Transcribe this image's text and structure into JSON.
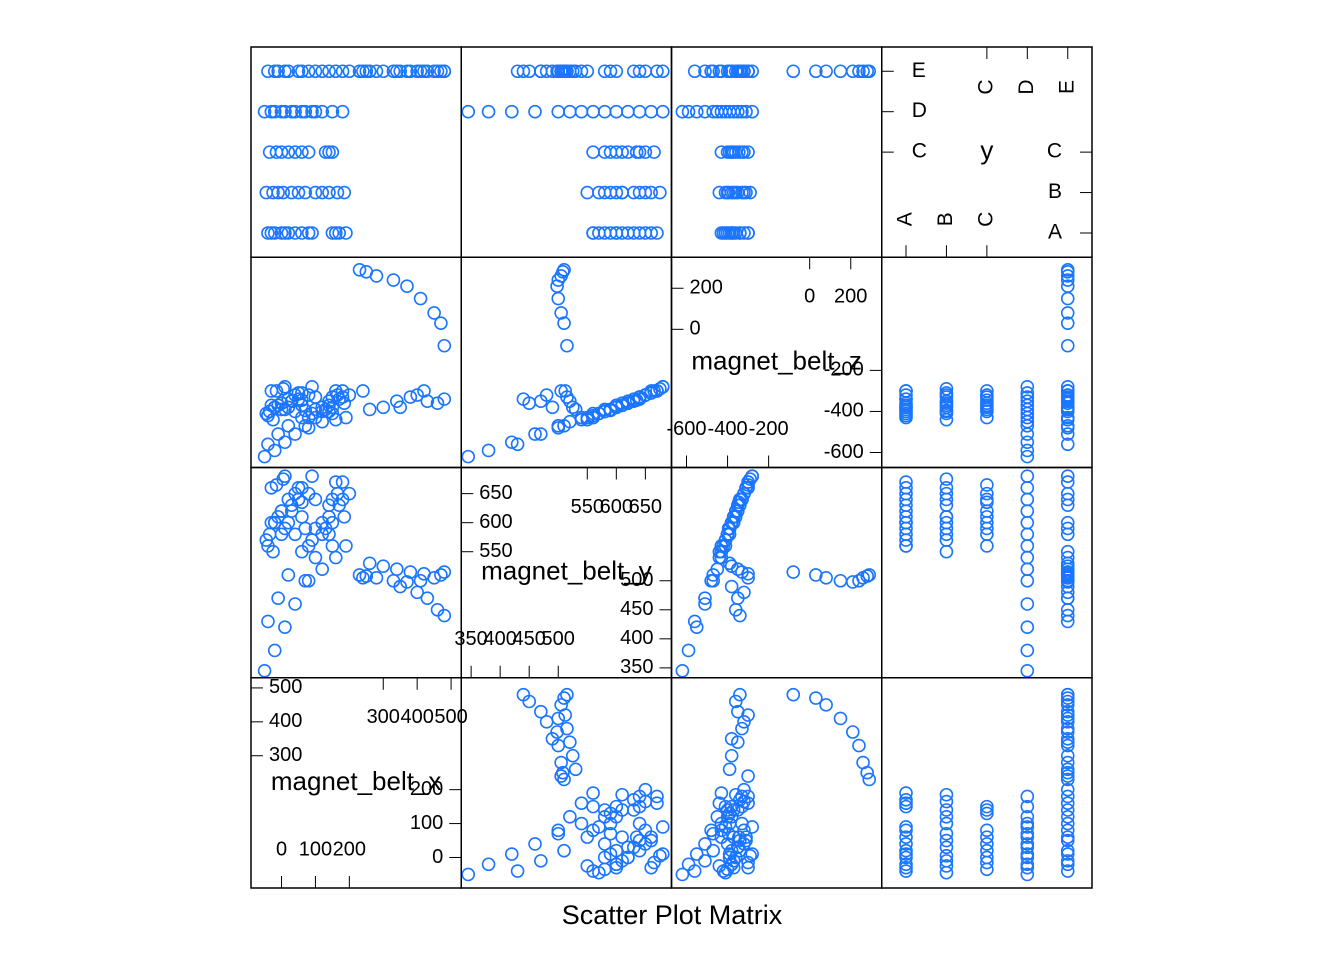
{
  "chart_data": {
    "type": "splom",
    "title": "Scatter Plot Matrix",
    "color": "#1a75ff",
    "variables": [
      {
        "name": "magnet_belt_x",
        "lim": [
          -90,
          530
        ],
        "ticks": [
          0,
          100,
          200,
          300,
          400,
          500
        ],
        "values": [
          -40,
          -20,
          0,
          20,
          40,
          60,
          80,
          90,
          -30,
          10,
          150,
          170,
          190,
          160,
          -45,
          -10,
          30,
          50,
          70,
          100,
          -25,
          140,
          165,
          185,
          5,
          120,
          -35,
          0,
          40,
          80,
          20,
          -15,
          130,
          150,
          140,
          60,
          -50,
          -20,
          10,
          40,
          70,
          100,
          0,
          30,
          60,
          -30,
          120,
          150,
          180,
          90,
          -40,
          -10,
          20,
          60,
          100,
          140,
          180,
          200,
          -20,
          50,
          120,
          160,
          10,
          80,
          230,
          250,
          280,
          330,
          370,
          410,
          450,
          470,
          480,
          420,
          380,
          340,
          300,
          260,
          240,
          430,
          460,
          480,
          350,
          400
        ]
      },
      {
        "name": "magnet_belt_y",
        "lim": [
          333,
          695
        ],
        "ticks": [
          350,
          400,
          450,
          500,
          550,
          600,
          650
        ],
        "values": [
          560,
          600,
          620,
          640,
          580,
          610,
          650,
          570,
          660,
          590,
          600,
          630,
          560,
          670,
          570,
          610,
          630,
          660,
          590,
          640,
          550,
          580,
          650,
          610,
          675,
          600,
          580,
          620,
          650,
          560,
          600,
          665,
          590,
          640,
          610,
          635,
          345,
          380,
          420,
          460,
          500,
          540,
          580,
          620,
          660,
          600,
          520,
          560,
          640,
          680,
          430,
          470,
          510,
          550,
          590,
          630,
          670,
          650,
          600,
          640,
          580,
          540,
          680,
          500,
          510,
          508,
          505,
          500,
          498,
          500,
          505,
          510,
          515,
          512,
          515,
          520,
          525,
          530,
          505,
          470,
          450,
          440,
          490,
          480
        ]
      },
      {
        "name": "magnet_belt_z",
        "lim": [
          -673,
          351
        ],
        "ticks": [
          -600,
          -400,
          -200,
          0,
          200
        ],
        "values": [
          -420,
          -380,
          -360,
          -340,
          -400,
          -370,
          -320,
          -410,
          -300,
          -390,
          -380,
          -340,
          -430,
          -300,
          -410,
          -370,
          -350,
          -310,
          -395,
          -330,
          -440,
          -400,
          -320,
          -360,
          -290,
          -380,
          -400,
          -360,
          -320,
          -430,
          -380,
          -300,
          -390,
          -330,
          -370,
          -345,
          -620,
          -590,
          -550,
          -510,
          -470,
          -430,
          -390,
          -350,
          -310,
          -370,
          -450,
          -410,
          -330,
          -280,
          -560,
          -510,
          -470,
          -430,
          -390,
          -350,
          -300,
          -320,
          -380,
          -340,
          -400,
          -440,
          -280,
          -480,
          290,
          280,
          260,
          240,
          210,
          150,
          80,
          30,
          -80,
          -300,
          -330,
          -350,
          -380,
          -390,
          -300,
          -350,
          -360,
          -340,
          -380,
          -320
        ]
      },
      {
        "name": "y",
        "categories": [
          "A",
          "B",
          "C",
          "D",
          "E"
        ],
        "values": [
          "A",
          "A",
          "A",
          "A",
          "A",
          "A",
          "A",
          "A",
          "A",
          "A",
          "A",
          "A",
          "A",
          "A",
          "B",
          "B",
          "B",
          "B",
          "B",
          "B",
          "B",
          "B",
          "B",
          "B",
          "B",
          "B",
          "C",
          "C",
          "C",
          "C",
          "C",
          "C",
          "C",
          "C",
          "C",
          "C",
          "D",
          "D",
          "D",
          "D",
          "D",
          "D",
          "D",
          "D",
          "D",
          "D",
          "D",
          "D",
          "D",
          "D",
          "E",
          "E",
          "E",
          "E",
          "E",
          "E",
          "E",
          "E",
          "E",
          "E",
          "E",
          "E",
          "E",
          "E",
          "E",
          "E",
          "E",
          "E",
          "E",
          "E",
          "E",
          "E",
          "E",
          "E",
          "E",
          "E",
          "E",
          "E",
          "E",
          "E",
          "E",
          "E",
          "E",
          "E"
        ]
      }
    ]
  }
}
